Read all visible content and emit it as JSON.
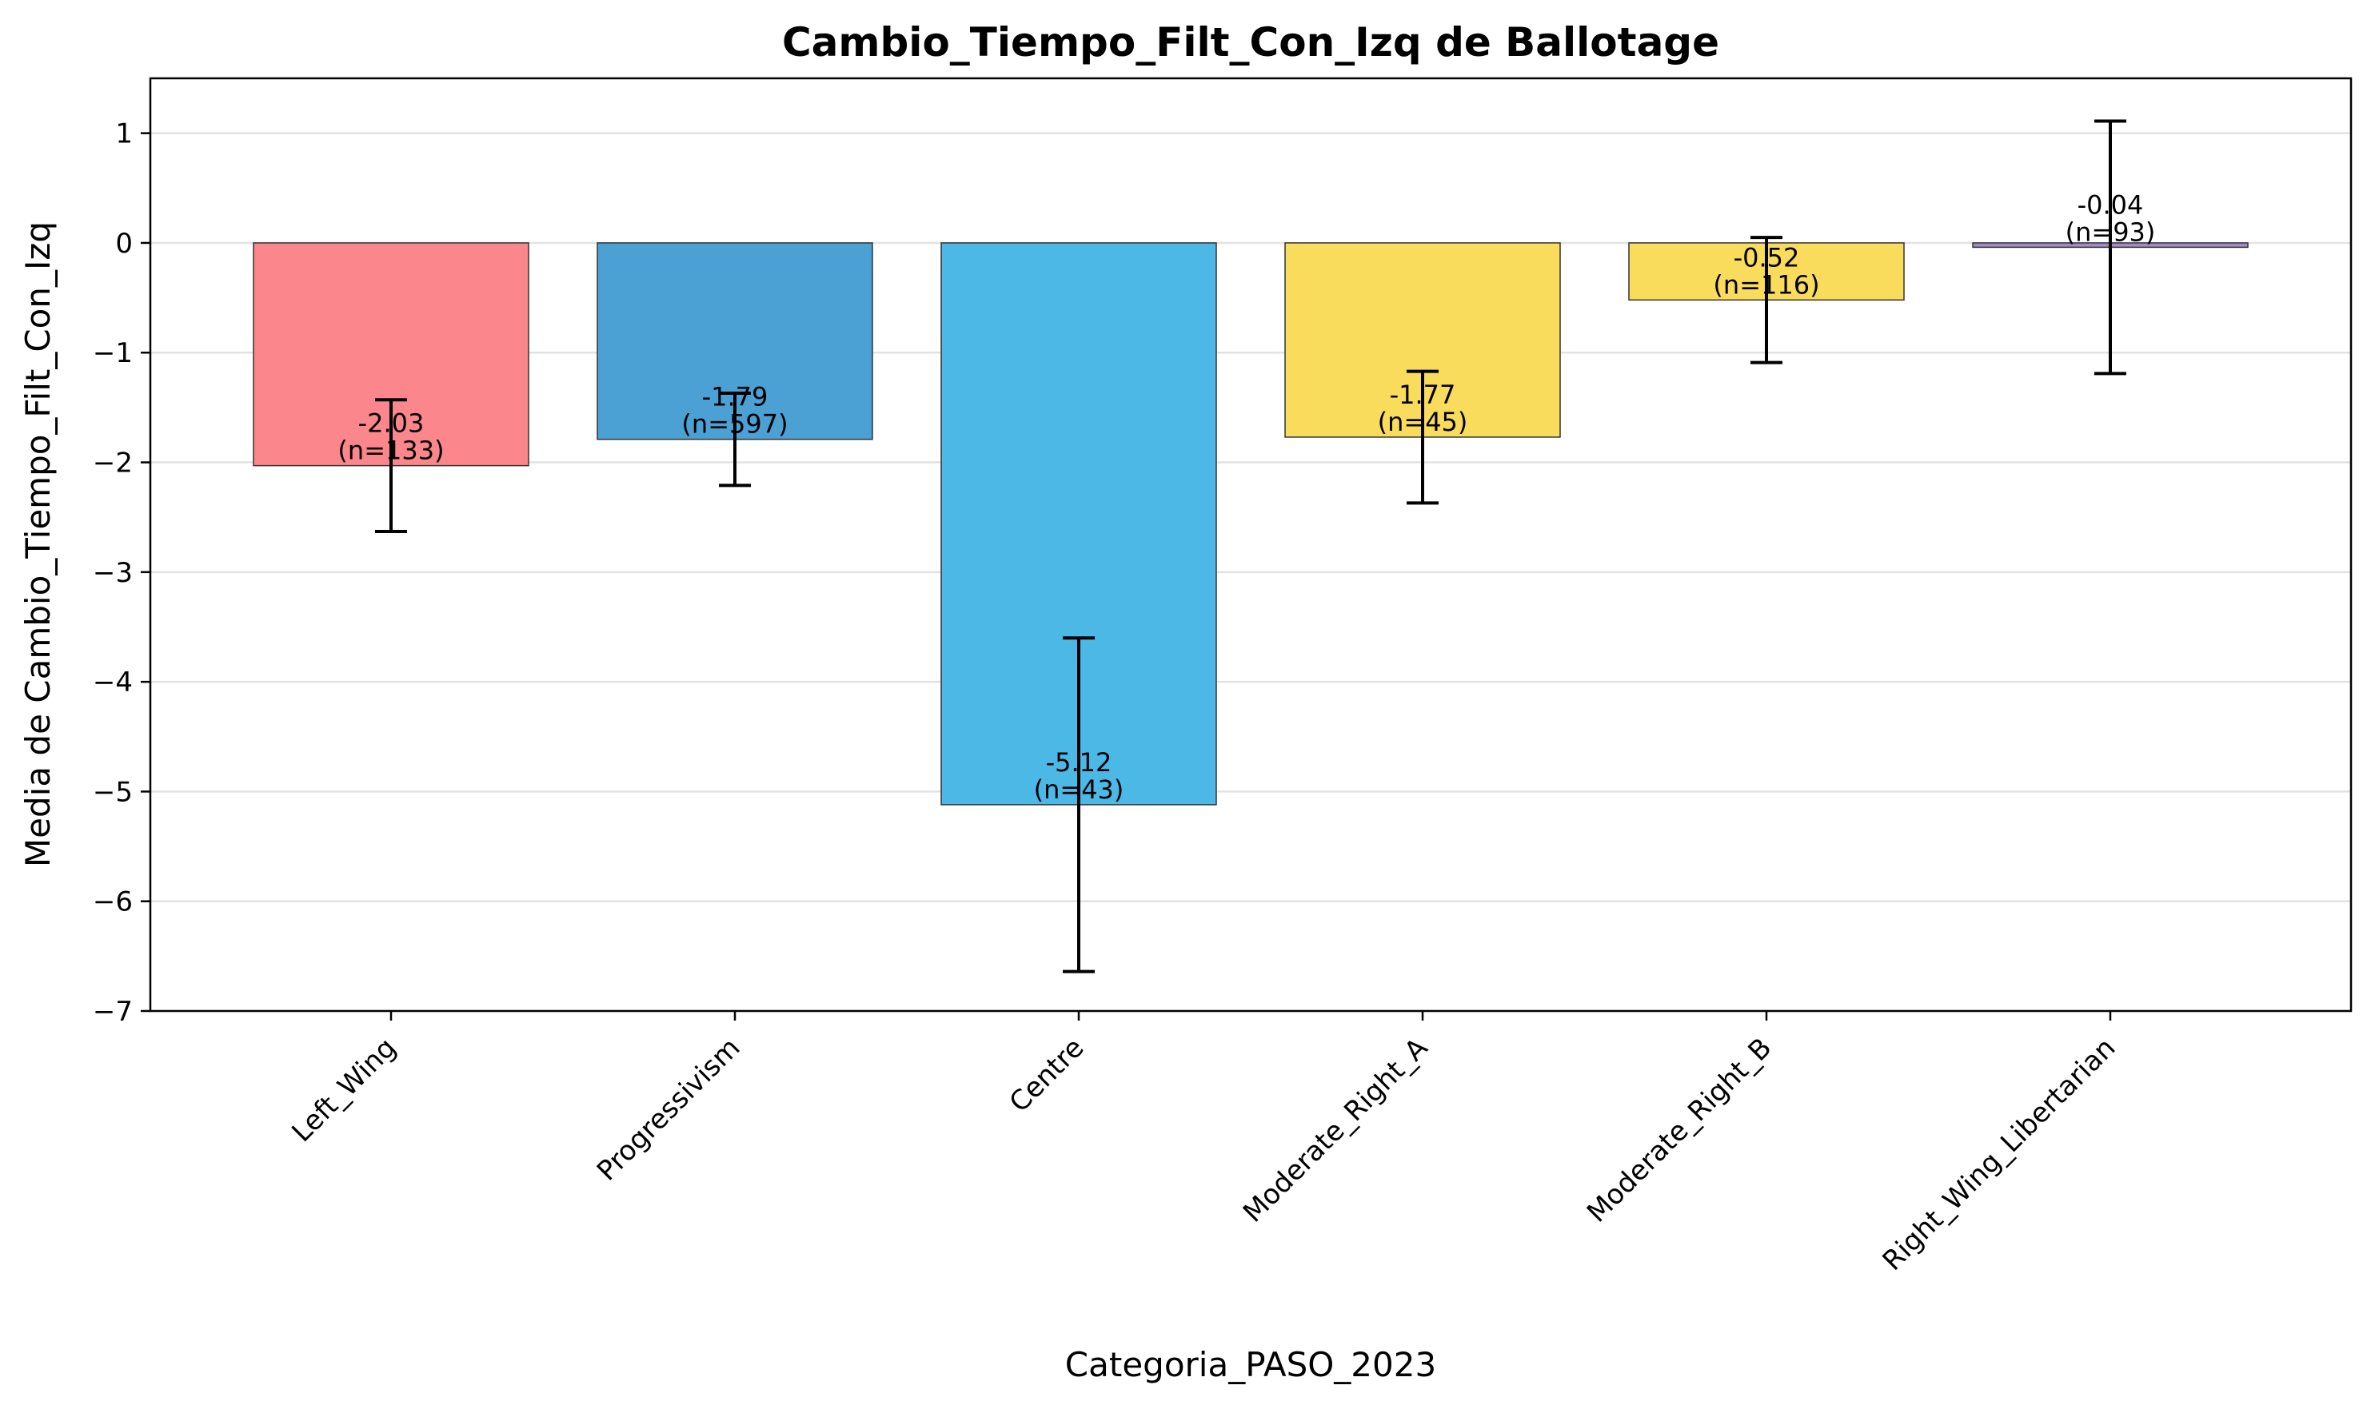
{
  "chart_data": {
    "type": "bar",
    "title": "Cambio_Tiempo_Filt_Con_Izq de Ballotage",
    "xlabel": "Categoria_PASO_2023",
    "ylabel": "Media de Cambio_Tiempo_Filt_Con_Izq",
    "ylim": [
      -7.0,
      1.5
    ],
    "yticks": [
      1,
      0,
      -1,
      -2,
      -3,
      -4,
      -5,
      -6,
      -7
    ],
    "ytick_labels": [
      "1",
      "0",
      "−1",
      "−2",
      "−3",
      "−4",
      "−5",
      "−6",
      "−7"
    ],
    "grid": "horizontal",
    "categories": [
      "Left_Wing",
      "Progressivism",
      "Centre",
      "Moderate_Right_A",
      "Moderate_Right_B",
      "Right_Wing_Libertarian"
    ],
    "values": [
      -2.03,
      -1.79,
      -5.12,
      -1.77,
      -0.52,
      -0.04
    ],
    "errors": [
      0.6,
      0.42,
      1.52,
      0.6,
      0.57,
      1.15
    ],
    "value_labels": [
      "-2.03",
      "-1.79",
      "-5.12",
      "-1.77",
      "-0.52",
      "-0.04"
    ],
    "n_labels": [
      "(n=133)",
      "(n=597)",
      "(n=43)",
      "(n=45)",
      "(n=116)",
      "(n=93)"
    ],
    "colors": [
      "#fb868c",
      "#4ba1d3",
      "#4cb8e6",
      "#f9dc5c",
      "#f9dc5c",
      "#a28bc9"
    ]
  }
}
